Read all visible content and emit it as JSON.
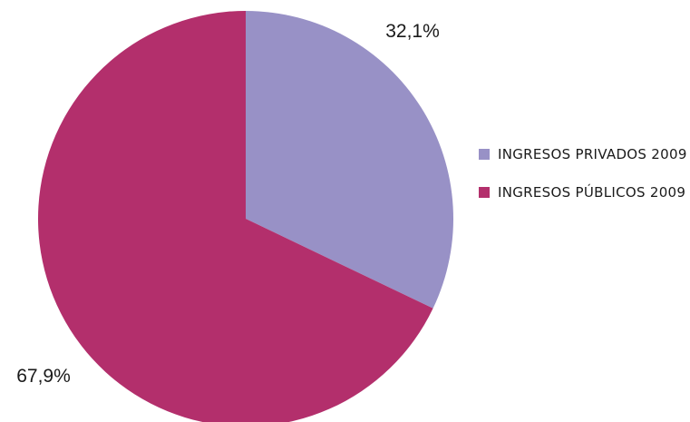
{
  "chart_data": {
    "type": "pie",
    "slices": [
      {
        "name": "INGRESOS PRIVADOS 2009",
        "value": 32.1,
        "label": "32,1%",
        "color": "#9891c6"
      },
      {
        "name": "INGRESOS PÚBLICOS 2009",
        "value": 67.9,
        "label": "67,9%",
        "color": "#b32f6c"
      }
    ],
    "start": "12 o'clock",
    "direction": "clockwise",
    "legend_position": "right"
  }
}
